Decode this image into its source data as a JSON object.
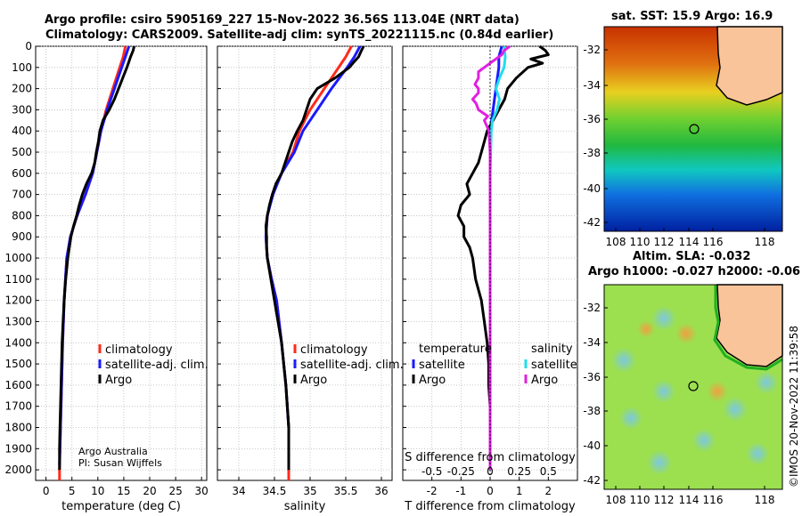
{
  "header": {
    "line1": "Argo profile: csiro 5905169_227 15-Nov-2022 36.56S 113.04E (NRT data)",
    "line2": "Climatology: CARS2009. Satellite-adj clim: synTS_20221115.nc (0.84d earlier)"
  },
  "footnote": {
    "org": "Argo Australia",
    "pi": "PI: Susan Wijffels"
  },
  "maps": {
    "sst_title": "sat. SST: 15.9 Argo: 16.9",
    "sla_title1": "Altim. SLA: -0.032",
    "sla_title2": "Argo h1000: -0.027 h2000: -0.06",
    "lat_ticks": [
      "-32",
      "-34",
      "-36",
      "-38",
      "-40",
      "-42"
    ],
    "lon_ticks": [
      "108",
      "110",
      "112",
      "114",
      "116",
      "118"
    ],
    "watermark": "©IMOS 20-Nov-2022 11:39:58"
  },
  "colors": {
    "climatology": "#ff2a1a",
    "satellite_adj": "#1a1aff",
    "argo": "#000000",
    "sat_temp": "#1a1aff",
    "sat_sal": "#22ddee",
    "argo_sal": "#e020e0",
    "land": "#f9c49a"
  },
  "chart_data": [
    {
      "type": "line",
      "name": "temperature",
      "xlabel": "temperature (deg C)",
      "ylabel": "",
      "xlim": [
        -2,
        31
      ],
      "ylim": [
        2050,
        0
      ],
      "xticks": [
        0,
        5,
        10,
        15,
        20,
        25,
        30
      ],
      "yticks": [
        0,
        100,
        200,
        300,
        400,
        500,
        600,
        700,
        800,
        900,
        1000,
        1100,
        1200,
        1300,
        1400,
        1500,
        1600,
        1700,
        1800,
        1900,
        2000
      ],
      "legend": [
        "climatology",
        "satellite-adj. clim.",
        "Argo"
      ],
      "series": [
        {
          "name": "climatology",
          "depth": [
            0,
            50,
            100,
            200,
            300,
            400,
            500,
            600,
            700,
            800,
            900,
            1000,
            1200,
            1400,
            1600,
            1800,
            2000,
            2050
          ],
          "values": [
            15.3,
            14.9,
            14.2,
            12.9,
            11.6,
            10.6,
            9.8,
            9.0,
            7.6,
            6.0,
            4.7,
            4.0,
            3.5,
            3.2,
            3.0,
            2.8,
            2.6,
            2.6
          ]
        },
        {
          "name": "satellite-adj. clim.",
          "depth": [
            0,
            50,
            100,
            200,
            300,
            400,
            500,
            600,
            700,
            800,
            900,
            1000,
            1200,
            1400,
            1600,
            1800,
            1980
          ],
          "values": [
            16.0,
            15.3,
            14.6,
            13.2,
            11.8,
            10.6,
            9.8,
            9.0,
            7.6,
            6.0,
            4.7,
            4.0,
            3.5,
            3.2,
            3.0,
            2.8,
            2.6
          ]
        },
        {
          "name": "Argo",
          "depth": [
            0,
            20,
            50,
            80,
            100,
            150,
            200,
            250,
            300,
            350,
            400,
            450,
            500,
            550,
            600,
            650,
            700,
            750,
            800,
            850,
            900,
            950,
            1000,
            1100,
            1200,
            1300,
            1400,
            1500,
            1600,
            1700,
            1800,
            1900,
            2000
          ],
          "values": [
            17.0,
            16.8,
            16.3,
            15.9,
            15.6,
            14.8,
            14.0,
            13.2,
            12.2,
            11.0,
            10.4,
            10.1,
            9.7,
            9.4,
            8.8,
            7.8,
            7.0,
            6.4,
            5.9,
            5.3,
            4.8,
            4.5,
            4.2,
            3.8,
            3.5,
            3.3,
            3.1,
            3.0,
            2.9,
            2.8,
            2.7,
            2.6,
            2.6
          ]
        }
      ]
    },
    {
      "type": "line",
      "name": "salinity",
      "xlabel": "salinity",
      "ylabel": "",
      "xlim": [
        33.7,
        36.15
      ],
      "ylim": [
        2050,
        0
      ],
      "xticks": [
        34,
        34.5,
        35,
        35.5,
        36
      ],
      "legend": [
        "climatology",
        "satellite-adj. clim.",
        "Argo"
      ],
      "series": [
        {
          "name": "climatology",
          "depth": [
            0,
            50,
            100,
            200,
            300,
            400,
            500,
            600,
            700,
            800,
            900,
            1000,
            1100,
            1200,
            1400,
            1600,
            1800,
            2050
          ],
          "values": [
            35.58,
            35.5,
            35.4,
            35.2,
            35.0,
            34.85,
            34.76,
            34.6,
            34.47,
            34.4,
            34.38,
            34.4,
            34.46,
            34.53,
            34.6,
            34.66,
            34.7,
            34.7
          ]
        },
        {
          "name": "satellite-adj. clim.",
          "depth": [
            0,
            50,
            100,
            200,
            300,
            400,
            500,
            600,
            700,
            800,
            900,
            1000,
            1100,
            1200,
            1400,
            1600,
            1800,
            2000
          ],
          "values": [
            35.7,
            35.62,
            35.52,
            35.3,
            35.1,
            34.9,
            34.78,
            34.6,
            34.48,
            34.4,
            34.38,
            34.4,
            34.46,
            34.53,
            34.6,
            34.66,
            34.7,
            34.7
          ]
        },
        {
          "name": "Argo",
          "depth": [
            0,
            20,
            50,
            80,
            100,
            150,
            200,
            250,
            300,
            350,
            400,
            450,
            500,
            550,
            600,
            650,
            700,
            750,
            800,
            850,
            900,
            950,
            1000,
            1100,
            1200,
            1300,
            1400,
            1500,
            1600,
            1700,
            1800,
            1900,
            2000
          ],
          "values": [
            35.75,
            35.72,
            35.68,
            35.6,
            35.55,
            35.35,
            35.1,
            35.0,
            34.95,
            34.9,
            34.82,
            34.75,
            34.7,
            34.65,
            34.6,
            34.52,
            34.47,
            34.43,
            34.4,
            34.38,
            34.39,
            34.39,
            34.4,
            34.45,
            34.5,
            34.55,
            34.6,
            34.63,
            34.66,
            34.68,
            34.7,
            34.7,
            34.7
          ]
        }
      ]
    },
    {
      "type": "line",
      "name": "differences",
      "xlabel": "T difference from climatology",
      "x2label": "S difference from climatology",
      "xlim": [
        -3,
        3
      ],
      "ylim": [
        2050,
        0
      ],
      "xticks": [
        -2,
        -1,
        0,
        1,
        2
      ],
      "x2tick_labels": [
        "-0.5",
        "-0.25",
        "0",
        "0.25",
        "0.5"
      ],
      "legend_temperature_heading": "temperature",
      "legend_salinity_heading": "salinity",
      "legend_temperature": [
        "satellite",
        "Argo"
      ],
      "legend_salinity": [
        "satellite",
        "Argo"
      ],
      "series": [
        {
          "name": "T satellite",
          "depth": [
            0,
            50,
            100,
            200,
            300,
            400,
            600,
            800,
            1000,
            1200,
            1400,
            1600,
            1800,
            2000
          ],
          "values": [
            0.4,
            0.3,
            0.3,
            0.2,
            0.1,
            0.0,
            0.0,
            0.0,
            0.0,
            0.0,
            0.0,
            0.0,
            0.0,
            0.0
          ]
        },
        {
          "name": "T Argo",
          "depth": [
            0,
            20,
            40,
            60,
            80,
            100,
            150,
            200,
            250,
            300,
            350,
            400,
            450,
            500,
            550,
            600,
            650,
            700,
            750,
            800,
            850,
            900,
            950,
            1000,
            1100,
            1200,
            1300,
            1400,
            1500,
            1600,
            1700,
            1800,
            1900,
            2000
          ],
          "values": [
            1.7,
            1.9,
            2.0,
            1.4,
            1.8,
            1.3,
            0.9,
            0.6,
            0.5,
            0.3,
            0.1,
            -0.1,
            -0.2,
            -0.3,
            -0.4,
            -0.6,
            -0.8,
            -0.7,
            -1.0,
            -1.1,
            -0.9,
            -0.9,
            -0.7,
            -0.6,
            -0.5,
            -0.3,
            -0.2,
            -0.1,
            -0.05,
            -0.05,
            0.0,
            0.0,
            0.0,
            0.0
          ]
        },
        {
          "name": "S satellite",
          "depth": [
            0,
            50,
            100,
            150,
            200,
            250,
            300,
            350,
            400,
            600,
            800,
            1000,
            1200,
            1400,
            1600,
            1800,
            2000
          ],
          "values": [
            0.12,
            0.13,
            0.12,
            0.08,
            0.05,
            0.08,
            0.06,
            0.02,
            0.01,
            0.0,
            0.0,
            0.0,
            0.0,
            0.0,
            0.0,
            0.0,
            0.0
          ]
        },
        {
          "name": "S Argo",
          "depth": [
            0,
            20,
            40,
            60,
            80,
            100,
            120,
            150,
            180,
            200,
            220,
            250,
            270,
            300,
            330,
            350,
            400,
            500,
            600,
            800,
            1000,
            1200,
            1400,
            1600,
            1800,
            2000
          ],
          "values": [
            0.17,
            0.12,
            0.1,
            0.05,
            0.0,
            -0.05,
            -0.1,
            -0.1,
            -0.13,
            -0.1,
            -0.1,
            -0.15,
            -0.12,
            -0.1,
            -0.02,
            -0.05,
            -0.01,
            0.0,
            0.0,
            0.0,
            0.0,
            0.0,
            0.0,
            0.0,
            0.0,
            0.0
          ]
        }
      ]
    }
  ]
}
